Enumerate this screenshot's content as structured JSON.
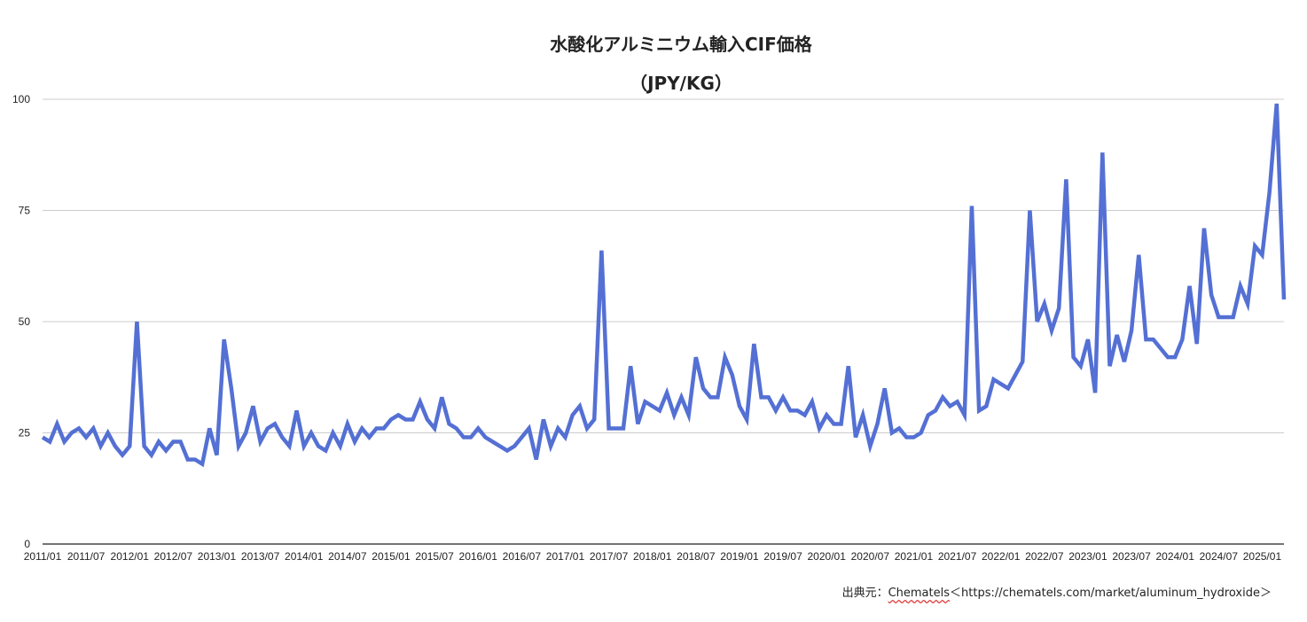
{
  "chart_data": {
    "type": "line",
    "title": "水酸化アルミニウム輸入CIF価格",
    "subtitle": "（JPY/KG）",
    "xlabel": "",
    "ylabel": "",
    "ylim": [
      0,
      100
    ],
    "yticks": [
      0,
      25,
      50,
      75,
      100
    ],
    "grid": true,
    "legend": "none",
    "line_color": "#5470d4",
    "x_tick_labels": [
      "2011/01",
      "2011/07",
      "2012/01",
      "2012/07",
      "2013/01",
      "2013/07",
      "2014/01",
      "2014/07",
      "2015/01",
      "2015/07",
      "2016/01",
      "2016/07",
      "2017/01",
      "2017/07",
      "2018/01",
      "2018/07",
      "2019/01",
      "2019/07",
      "2020/01",
      "2020/07",
      "2021/01",
      "2021/07",
      "2022/01",
      "2022/07",
      "2023/01",
      "2023/07",
      "2024/01",
      "2024/07",
      "2025/01"
    ],
    "start_month": "2011/01",
    "values": [
      24,
      23,
      27,
      23,
      25,
      26,
      24,
      26,
      22,
      25,
      22,
      20,
      22,
      50,
      22,
      20,
      23,
      21,
      23,
      23,
      19,
      19,
      18,
      26,
      20,
      46,
      35,
      22,
      25,
      31,
      23,
      26,
      27,
      24,
      22,
      30,
      22,
      25,
      22,
      21,
      25,
      22,
      27,
      23,
      26,
      24,
      26,
      26,
      28,
      29,
      28,
      28,
      32,
      28,
      26,
      33,
      27,
      26,
      24,
      24,
      26,
      24,
      23,
      22,
      21,
      22,
      24,
      26,
      19,
      28,
      22,
      26,
      24,
      29,
      31,
      26,
      28,
      66,
      26,
      26,
      26,
      40,
      27,
      32,
      31,
      30,
      34,
      29,
      33,
      29,
      42,
      35,
      33,
      33,
      42,
      38,
      31,
      28,
      45,
      33,
      33,
      30,
      33,
      30,
      30,
      29,
      32,
      26,
      29,
      27,
      27,
      40,
      24,
      29,
      22,
      27,
      35,
      25,
      26,
      24,
      24,
      25,
      29,
      30,
      33,
      31,
      32,
      29,
      76,
      30,
      31,
      37,
      36,
      35,
      38,
      41,
      75,
      50,
      54,
      48,
      53,
      82,
      42,
      40,
      46,
      34,
      88,
      40,
      47,
      41,
      48,
      65,
      46,
      46,
      44,
      42,
      42,
      46,
      58,
      45,
      71,
      56,
      51,
      51,
      51,
      58,
      54,
      67,
      65,
      79,
      99,
      55
    ]
  },
  "source": {
    "prefix": "出典元：",
    "brand": "Chematels",
    "url_text": "＜https://chematels.com/market/aluminum_hydroxide＞"
  }
}
